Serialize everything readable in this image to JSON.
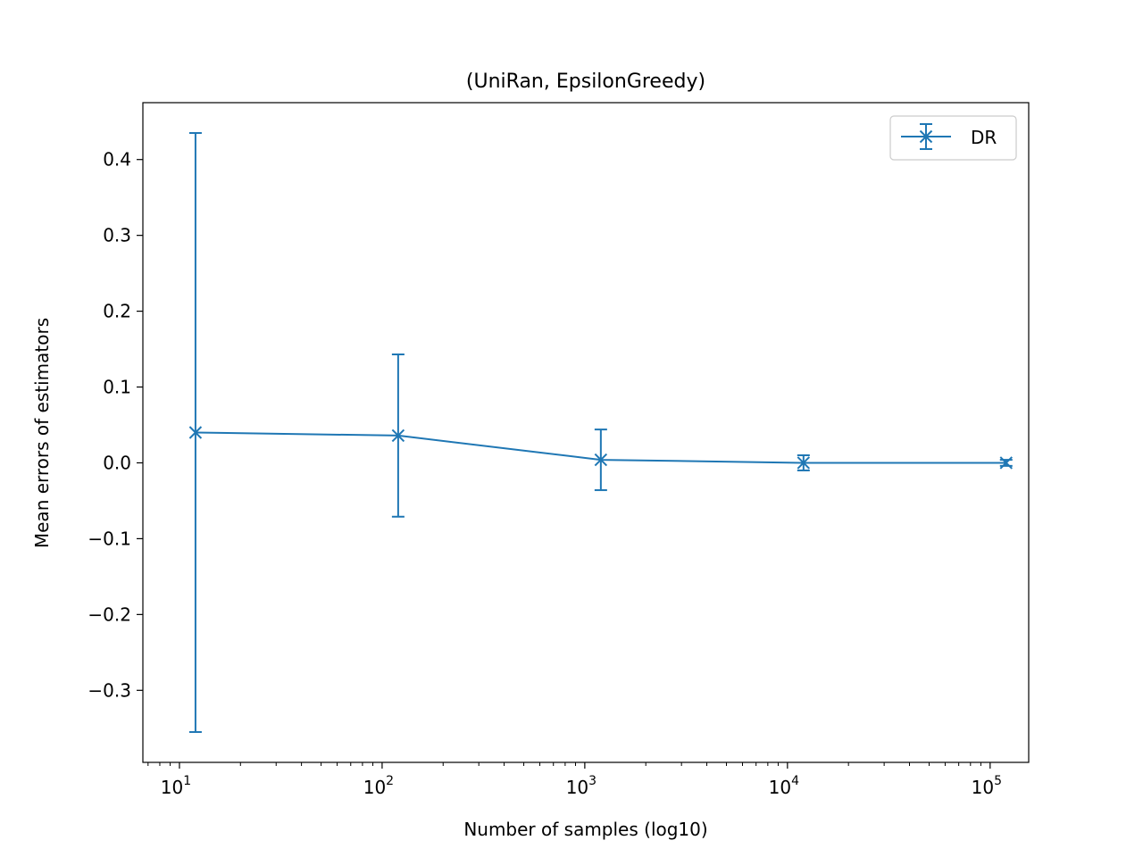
{
  "chart_data": {
    "type": "line",
    "title": "(UniRan, EpsilonGreedy)",
    "xlabel": "Number of samples (log10)",
    "ylabel": "Mean errors of estimators",
    "x_scale": "log",
    "xlim": [
      6.6,
      155000
    ],
    "ylim": [
      -0.395,
      0.475
    ],
    "x_ticks": [
      {
        "value": 10,
        "base": "10",
        "exp": "1"
      },
      {
        "value": 100,
        "base": "10",
        "exp": "2"
      },
      {
        "value": 1000,
        "base": "10",
        "exp": "3"
      },
      {
        "value": 10000,
        "base": "10",
        "exp": "4"
      },
      {
        "value": 100000,
        "base": "10",
        "exp": "5"
      }
    ],
    "y_ticks": [
      {
        "value": 0.4,
        "label": "0.4"
      },
      {
        "value": 0.3,
        "label": "0.3"
      },
      {
        "value": 0.2,
        "label": "0.2"
      },
      {
        "value": 0.1,
        "label": "0.1"
      },
      {
        "value": 0.0,
        "label": "0.0"
      },
      {
        "value": -0.1,
        "label": "−0.1"
      },
      {
        "value": -0.2,
        "label": "−0.2"
      },
      {
        "value": -0.3,
        "label": "−0.3"
      }
    ],
    "grid": false,
    "legend_position": "top-right",
    "series": [
      {
        "name": "DR",
        "color": "#1f77b4",
        "marker": "x",
        "x": [
          12,
          120,
          1200,
          12000,
          120000
        ],
        "y": [
          0.04,
          0.036,
          0.004,
          0.0,
          0.0
        ],
        "yerr": [
          0.395,
          0.107,
          0.04,
          0.01,
          0.004
        ]
      }
    ]
  }
}
